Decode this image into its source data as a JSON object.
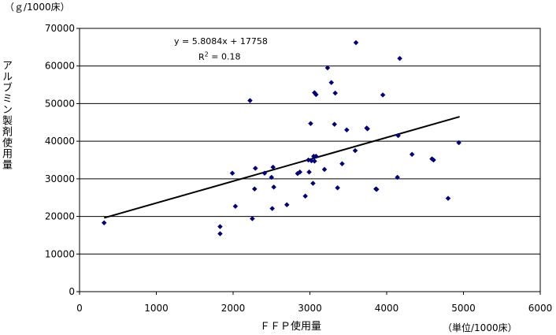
{
  "chart_data": {
    "type": "scatter",
    "y_unit": "（ｇ/1000床）",
    "x_unit": "（単位/1000床）",
    "ylabel": "アルブミン製剤使用量",
    "xlabel": "ＦＦＰ使用量",
    "xlim": [
      0,
      6000
    ],
    "ylim": [
      0,
      70000
    ],
    "x_ticks": [
      "0",
      "1000",
      "2000",
      "3000",
      "4000",
      "5000",
      "6000"
    ],
    "y_ticks": [
      "0",
      "10000",
      "20000",
      "30000",
      "40000",
      "50000",
      "60000",
      "70000"
    ],
    "grid": "horizontal",
    "trendline": {
      "equation": "y = 5.8084x + 17758",
      "r2_prefix": "R",
      "r2_exp": "2",
      "r2_value": " = 0.18",
      "slope": 5.8084,
      "intercept": 17758,
      "x_range": [
        320,
        4950
      ]
    },
    "marker_color": "#000080",
    "points": [
      [
        320,
        18300
      ],
      [
        1830,
        17300
      ],
      [
        1830,
        15400
      ],
      [
        1990,
        31500
      ],
      [
        2030,
        22700
      ],
      [
        2220,
        50800
      ],
      [
        2250,
        19400
      ],
      [
        2280,
        27300
      ],
      [
        2290,
        32800
      ],
      [
        2410,
        31500
      ],
      [
        2500,
        30400
      ],
      [
        2510,
        22100
      ],
      [
        2520,
        33100
      ],
      [
        2530,
        27800
      ],
      [
        2700,
        23100
      ],
      [
        2840,
        31400
      ],
      [
        2870,
        31800
      ],
      [
        2940,
        25400
      ],
      [
        2980,
        35000
      ],
      [
        2990,
        31800
      ],
      [
        3010,
        44700
      ],
      [
        3020,
        34800
      ],
      [
        3040,
        28800
      ],
      [
        3050,
        36000
      ],
      [
        3060,
        34700
      ],
      [
        3060,
        52900
      ],
      [
        3080,
        52400
      ],
      [
        3080,
        36000
      ],
      [
        3190,
        32500
      ],
      [
        3230,
        59500
      ],
      [
        3280,
        55600
      ],
      [
        3320,
        44500
      ],
      [
        3330,
        52800
      ],
      [
        3360,
        27600
      ],
      [
        3420,
        34000
      ],
      [
        3480,
        43000
      ],
      [
        3590,
        37500
      ],
      [
        3600,
        66200
      ],
      [
        3740,
        43500
      ],
      [
        3750,
        43300
      ],
      [
        3860,
        27300
      ],
      [
        3870,
        27200
      ],
      [
        3950,
        52300
      ],
      [
        4140,
        30400
      ],
      [
        4150,
        41500
      ],
      [
        4170,
        62000
      ],
      [
        4330,
        36500
      ],
      [
        4590,
        35300
      ],
      [
        4610,
        35000
      ],
      [
        4800,
        24800
      ],
      [
        4940,
        39600
      ]
    ]
  }
}
